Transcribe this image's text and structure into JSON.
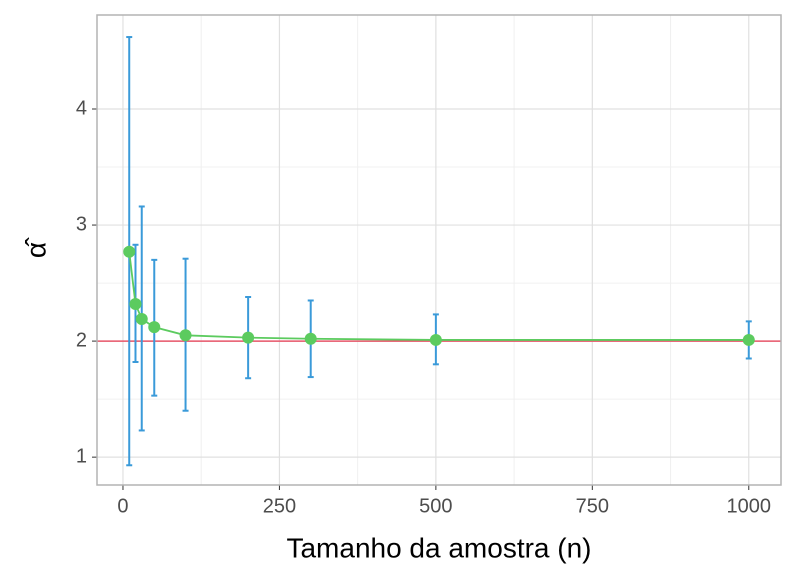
{
  "chart_data": {
    "type": "line-errorbar",
    "x_label": "Tamanho da amostra (n)",
    "y_label": "α̂",
    "x": [
      10,
      20,
      30,
      50,
      100,
      200,
      300,
      500,
      1000
    ],
    "values": [
      2.77,
      2.32,
      2.19,
      2.12,
      2.05,
      2.03,
      2.02,
      2.01,
      2.01
    ],
    "lower": [
      0.93,
      1.82,
      1.23,
      1.53,
      1.4,
      1.68,
      1.69,
      1.8,
      1.85
    ],
    "upper": [
      4.62,
      2.83,
      3.16,
      2.7,
      2.71,
      2.38,
      2.35,
      2.23,
      2.17
    ],
    "color": "#5ccb5f",
    "errorbar_color": "#3a9ad9",
    "hline": 2,
    "hline_color": "#e8566a",
    "xlim": [
      -41.5,
      1051.5
    ],
    "ylim": [
      0.76,
      4.81
    ],
    "xticks": [
      0,
      250,
      500,
      750,
      1000
    ],
    "yticks": [
      1,
      2,
      3,
      4
    ],
    "grid": true
  }
}
